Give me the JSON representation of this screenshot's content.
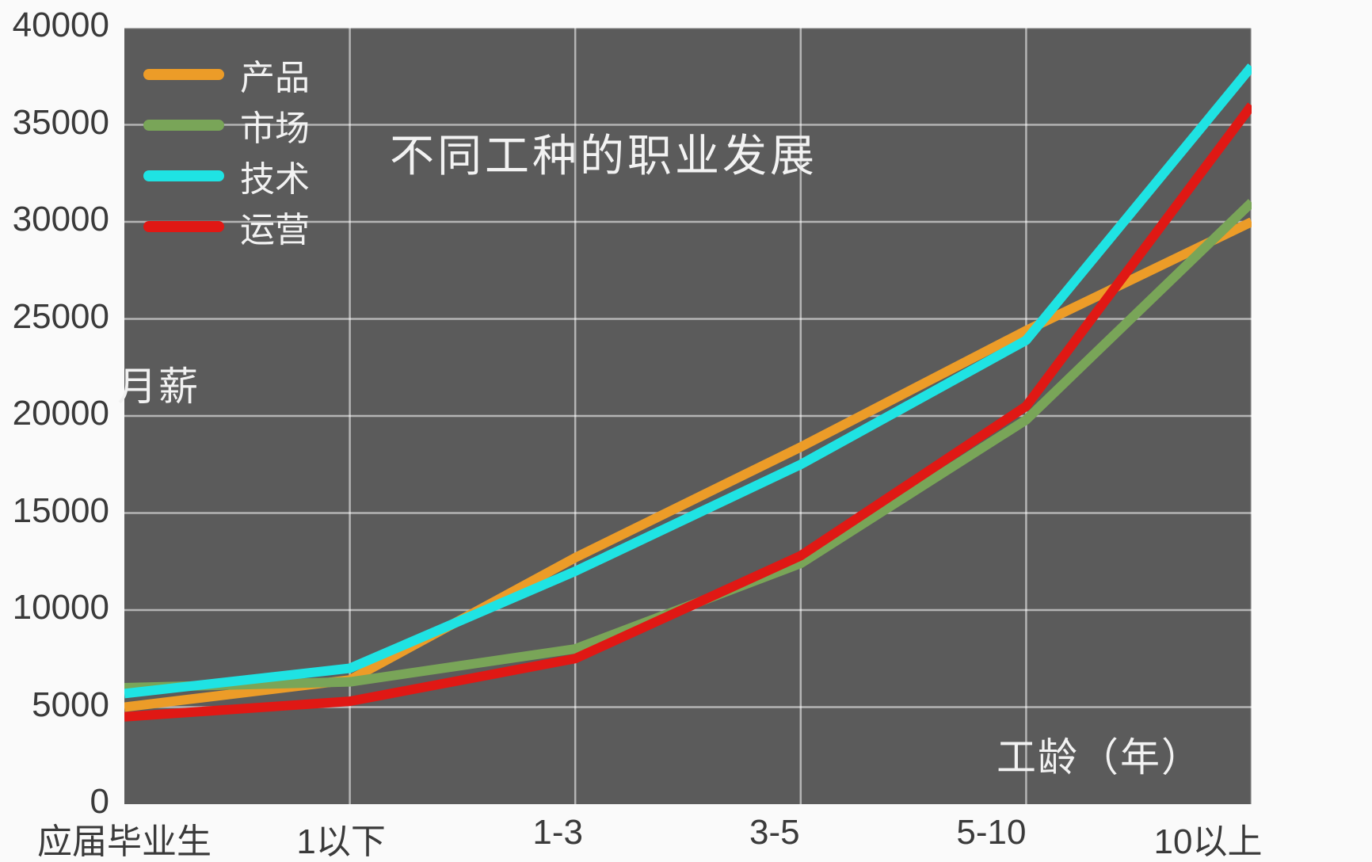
{
  "chart": {
    "title": "不同工种的职业发展",
    "y_axis_title": "月薪",
    "x_axis_title": "工龄（年）",
    "plot_background_color": "#5B5B5B",
    "page_background_color": "#FAFAFA",
    "gridline_color": "rgba(255,255,255,0.55)",
    "tick_text_color": "#3A3A3A",
    "in_plot_text_color": "#F2F2F2"
  },
  "chart_data": {
    "type": "line",
    "title": "不同工种的职业发展",
    "xlabel": "工龄（年）",
    "ylabel": "月薪",
    "categories": [
      "应届毕业生",
      "1以下",
      "1-3",
      "3-5",
      "5-10",
      "10以上"
    ],
    "series": [
      {
        "name": "产品",
        "color": "#EC9C28",
        "values": [
          5000,
          6400,
          12700,
          18400,
          24400,
          30000
        ]
      },
      {
        "name": "市场",
        "color": "#79A558",
        "values": [
          6000,
          6300,
          8000,
          12400,
          19800,
          31000
        ]
      },
      {
        "name": "技术",
        "color": "#1FE3E3",
        "values": [
          5700,
          7000,
          12000,
          17500,
          23900,
          38000
        ]
      },
      {
        "name": "运营",
        "color": "#E01814",
        "values": [
          4500,
          5300,
          7500,
          12800,
          20500,
          36000
        ]
      }
    ],
    "ylim": [
      0,
      40000
    ],
    "yticks": [
      0,
      5000,
      10000,
      15000,
      20000,
      25000,
      30000,
      35000,
      40000
    ],
    "grid": true,
    "legend_position": "top-left",
    "legend_entries": [
      "产品",
      "市场",
      "技术",
      "运营"
    ]
  }
}
